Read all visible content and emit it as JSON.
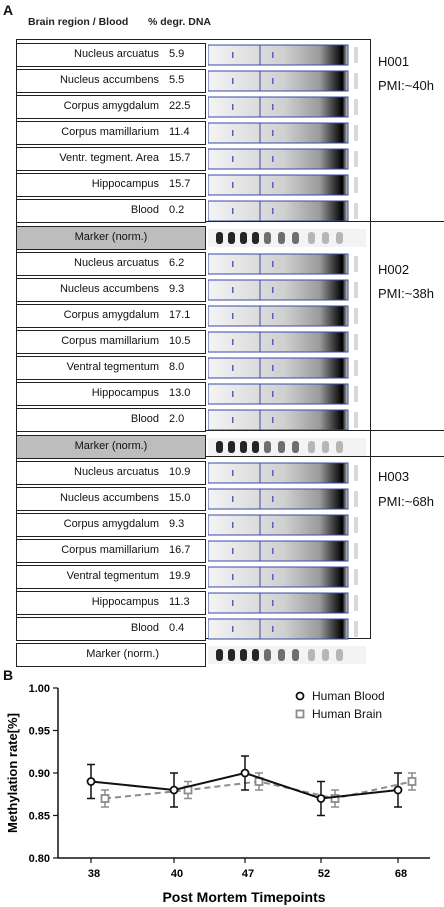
{
  "panel_a": {
    "letter": "A",
    "header_region": "Brain region / Blood",
    "header_value": "% degr. DNA",
    "groups": [
      {
        "id": "H001",
        "pmi": "PMI:~40h",
        "rows": [
          {
            "name": "Nucleus arcuatus",
            "value": "5.9"
          },
          {
            "name": "Nucleus accumbens",
            "value": "5.5"
          },
          {
            "name": "Corpus amygdalum",
            "value": "22.5"
          },
          {
            "name": "Corpus mamillarium",
            "value": "11.4"
          },
          {
            "name": "Ventr. tegment. Area",
            "value": "15.7"
          },
          {
            "name": "Hippocampus",
            "value": "15.7"
          },
          {
            "name": "Blood",
            "value": "0.2"
          }
        ],
        "marker": "Marker (norm.)"
      },
      {
        "id": "H002",
        "pmi": "PMI:~38h",
        "rows": [
          {
            "name": "Nucleus arcuatus",
            "value": "6.2"
          },
          {
            "name": "Nucleus accumbens",
            "value": "9.3"
          },
          {
            "name": "Corpus amygdalum",
            "value": "17.1"
          },
          {
            "name": "Corpus mamillarium",
            "value": "10.5"
          },
          {
            "name": "Ventral tegmentum",
            "value": "8.0"
          },
          {
            "name": "Hippocampus",
            "value": "13.0"
          },
          {
            "name": "Blood",
            "value": "2.0"
          }
        ],
        "marker": "Marker (norm.)"
      },
      {
        "id": "H003",
        "pmi": "PMI:~68h",
        "rows": [
          {
            "name": "Nucleus arcuatus",
            "value": "10.9"
          },
          {
            "name": "Nucleus accumbens",
            "value": "15.0"
          },
          {
            "name": "Corpus amygdalum",
            "value": "9.3"
          },
          {
            "name": "Corpus mamillarium",
            "value": "16.7"
          },
          {
            "name": "Ventral tegmentum",
            "value": "19.9"
          },
          {
            "name": "Hippocampus",
            "value": "11.3"
          },
          {
            "name": "Blood",
            "value": "0.4"
          }
        ],
        "marker": "Marker (norm.)"
      }
    ]
  },
  "panel_b": {
    "letter": "B"
  },
  "chart_data": {
    "type": "line",
    "xlabel": "Post Mortem Timepoints",
    "ylabel": "Methylation rate[%]",
    "categories": [
      "38",
      "40",
      "47",
      "52",
      "68"
    ],
    "ylim": [
      0.8,
      1.0
    ],
    "yticks": [
      "0.80",
      "0.85",
      "0.90",
      "0.95",
      "1.00"
    ],
    "grid": false,
    "legend_position": "top-right",
    "series": [
      {
        "name": "Human Blood",
        "values": [
          0.89,
          0.88,
          0.9,
          0.87,
          0.88
        ],
        "errors": [
          0.02,
          0.02,
          0.02,
          0.02,
          0.02
        ],
        "color": "#111111",
        "marker": "circle",
        "dash": "solid"
      },
      {
        "name": "Human Brain",
        "values": [
          0.87,
          0.88,
          0.89,
          0.87,
          0.89
        ],
        "errors": [
          0.01,
          0.01,
          0.01,
          0.01,
          0.01
        ],
        "color": "#8c8c8c",
        "marker": "square",
        "dash": "dashed"
      }
    ]
  }
}
